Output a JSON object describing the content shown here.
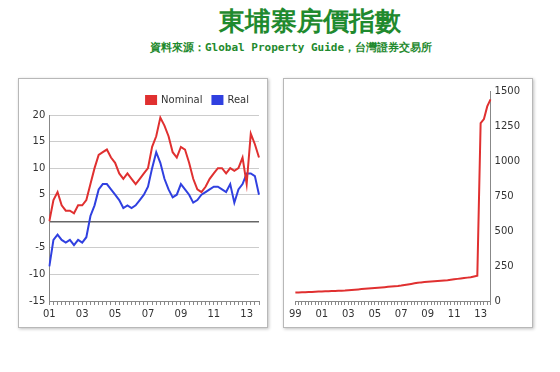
{
  "header": {
    "title": "東埔寨房價指數",
    "subtitle": "資料來源：Global Property Guide，台灣證券交易所"
  },
  "chart_data": [
    {
      "type": "line",
      "categories": [
        "01",
        null,
        null,
        null,
        null,
        null,
        null,
        null,
        "03",
        null,
        null,
        null,
        null,
        null,
        null,
        null,
        "05",
        null,
        null,
        null,
        null,
        null,
        null,
        null,
        "07",
        null,
        null,
        null,
        null,
        null,
        null,
        null,
        "09",
        null,
        null,
        null,
        null,
        null,
        null,
        null,
        "11",
        null,
        null,
        null,
        null,
        null,
        null,
        null,
        "13",
        null,
        null,
        null
      ],
      "series": [
        {
          "name": "Nominal",
          "color": "#e03030",
          "values": [
            0,
            4,
            5.5,
            3,
            2,
            2,
            1.5,
            3,
            3,
            4,
            7,
            10,
            12.5,
            13,
            13.5,
            12,
            11,
            9,
            8,
            9,
            8,
            7,
            8,
            9,
            10,
            14,
            16,
            19.5,
            18,
            16,
            13,
            12,
            14,
            13.5,
            11,
            8,
            6,
            5.5,
            6.5,
            8,
            9,
            10,
            10,
            9,
            10,
            9.5,
            10,
            12,
            7,
            16.5,
            14.5,
            12
          ]
        },
        {
          "name": "Real",
          "color": "#3040e0",
          "values": [
            -8.5,
            -3.5,
            -2.5,
            -3.5,
            -4,
            -3.5,
            -4.5,
            -3.5,
            -4,
            -3,
            1,
            3,
            6,
            7,
            7,
            6,
            5,
            4,
            2.5,
            3,
            2.5,
            3,
            4,
            5,
            6.5,
            10,
            13,
            11,
            8,
            6,
            4.5,
            5,
            7,
            6,
            5,
            3.5,
            4,
            5,
            5.5,
            6,
            6.5,
            6.5,
            6,
            5.5,
            7,
            3.5,
            6,
            7,
            9,
            9,
            8.5,
            5
          ]
        }
      ],
      "ylim": [
        -15,
        20
      ],
      "yticks": [
        -15,
        -10,
        -5,
        0,
        5,
        10,
        15,
        20
      ],
      "grid": true,
      "legend": "top-right"
    },
    {
      "type": "line",
      "categories": [
        "99",
        null,
        null,
        null,
        null,
        null,
        null,
        null,
        "01",
        null,
        null,
        null,
        null,
        null,
        null,
        null,
        "03",
        null,
        null,
        null,
        null,
        null,
        null,
        null,
        "05",
        null,
        null,
        null,
        null,
        null,
        null,
        null,
        "07",
        null,
        null,
        null,
        null,
        null,
        null,
        null,
        "09",
        null,
        null,
        null,
        null,
        null,
        null,
        null,
        "11",
        null,
        null,
        null,
        null,
        null,
        null,
        null,
        "13",
        null,
        null,
        null
      ],
      "values": [
        60,
        61,
        62,
        63,
        64,
        65,
        66,
        67,
        68,
        69,
        70,
        71,
        72,
        73,
        74,
        75,
        77,
        79,
        81,
        83,
        85,
        87,
        89,
        91,
        93,
        95,
        97,
        99,
        101,
        103,
        105,
        107,
        110,
        114,
        118,
        122,
        126,
        130,
        133,
        135,
        137,
        139,
        141,
        143,
        145,
        147,
        149,
        152,
        155,
        158,
        161,
        164,
        167,
        170,
        175,
        180,
        1270,
        1300,
        1390,
        1440
      ],
      "color": "#e03030",
      "ylim": [
        0,
        1500
      ],
      "yticks": [
        0,
        250,
        500,
        750,
        1000,
        1250,
        1500
      ],
      "grid": false
    }
  ]
}
